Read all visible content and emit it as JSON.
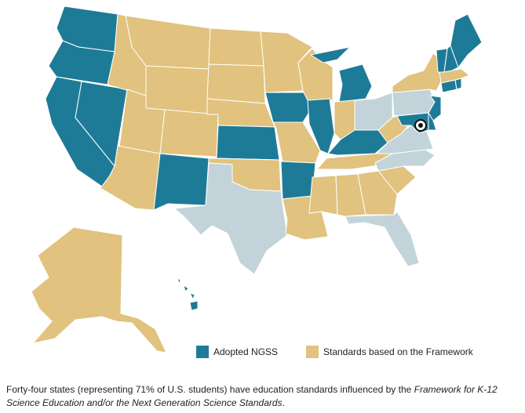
{
  "colors": {
    "adopted_ngss": "#1e7b98",
    "framework": "#e1c27e",
    "other": "#c3d3da",
    "border": "#ffffff"
  },
  "legend": [
    {
      "key": "adopted_ngss",
      "label": "Adopted NGSS"
    },
    {
      "key": "framework",
      "label": "Standards based on the Framework"
    }
  ],
  "states": {
    "adopted_ngss": [
      "WA",
      "OR",
      "CA",
      "NV",
      "NM",
      "KS",
      "IA",
      "IL",
      "AR",
      "KY",
      "MI",
      "DE",
      "MD",
      "NJ",
      "CT",
      "RI",
      "VT",
      "NH",
      "ME",
      "HI"
    ],
    "framework": [
      "ID",
      "MT",
      "WY",
      "UT",
      "AZ",
      "CO",
      "ND",
      "SD",
      "NE",
      "OK",
      "MN",
      "WI",
      "MO",
      "LA",
      "MS",
      "AL",
      "GA",
      "SC",
      "TN",
      "IN",
      "WV",
      "NY",
      "MA",
      "AK"
    ],
    "other": [
      "TX",
      "FL",
      "OH",
      "PA",
      "VA",
      "NC"
    ]
  },
  "marker": {
    "name": "DC"
  },
  "caption": {
    "part1": "Forty-four states (representing 71% of U.S. students) have education standards influenced by the ",
    "italic": "Framework for K-12 Science Education and/or the Next Generation Science Standards",
    "part2": "."
  }
}
